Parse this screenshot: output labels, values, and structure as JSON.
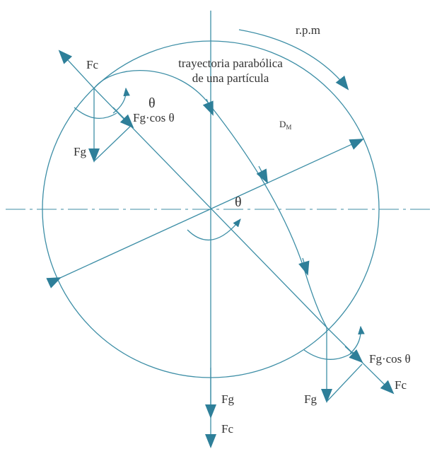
{
  "labels": {
    "rpm": "r.p.m",
    "fc_top": "Fc",
    "trajectory_1": "trayectoria parabólica",
    "trajectory_2": "de una partícula",
    "theta_top": "θ",
    "fg_cos_top": "Fg·cos θ",
    "fg_top": "Fg",
    "diameter": {
      "text": "D",
      "subscript": "M"
    },
    "theta_center": "θ",
    "fg_cos_bottom": "Fg·cos θ",
    "fc_bottom_right": "Fc",
    "fg_bottom_right": "Fg",
    "fg_bottom": "Fg",
    "fc_bottom": "Fc"
  }
}
